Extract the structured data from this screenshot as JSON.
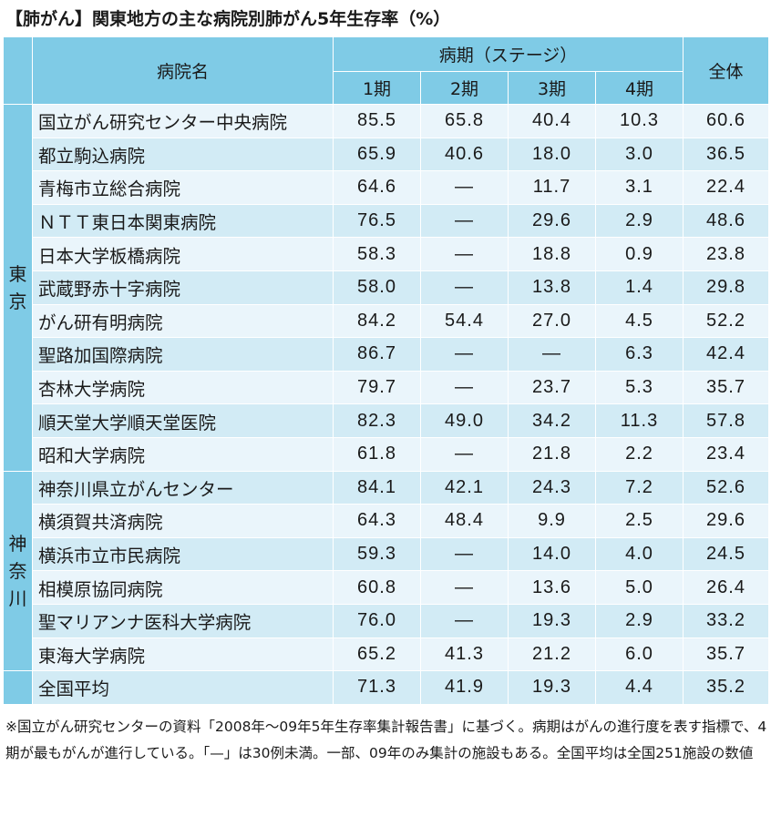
{
  "title": "【肺がん】関東地方の主な病院別肺がん5年生存率（%）",
  "header": {
    "hospital": "病院名",
    "stage_group": "病期（ステージ）",
    "stages": [
      "1期",
      "2期",
      "3期",
      "4期"
    ],
    "overall": "全体"
  },
  "regions": {
    "tokyo": [
      "東",
      "京"
    ],
    "kanagawa": [
      "神",
      "奈",
      "川"
    ]
  },
  "rows": [
    {
      "name": "国立がん研究センター中央病院",
      "s1": "85.5",
      "s2": "65.8",
      "s3": "40.4",
      "s4": "10.3",
      "all": "60.6"
    },
    {
      "name": "都立駒込病院",
      "s1": "65.9",
      "s2": "40.6",
      "s3": "18.0",
      "s4": "3.0",
      "all": "36.5"
    },
    {
      "name": "青梅市立総合病院",
      "s1": "64.6",
      "s2": "—",
      "s3": "11.7",
      "s4": "3.1",
      "all": "22.4"
    },
    {
      "name": "ＮＴＴ東日本関東病院",
      "s1": "76.5",
      "s2": "—",
      "s3": "29.6",
      "s4": "2.9",
      "all": "48.6"
    },
    {
      "name": "日本大学板橋病院",
      "s1": "58.3",
      "s2": "—",
      "s3": "18.8",
      "s4": "0.9",
      "all": "23.8"
    },
    {
      "name": "武蔵野赤十字病院",
      "s1": "58.0",
      "s2": "—",
      "s3": "13.8",
      "s4": "1.4",
      "all": "29.8"
    },
    {
      "name": "がん研有明病院",
      "s1": "84.2",
      "s2": "54.4",
      "s3": "27.0",
      "s4": "4.5",
      "all": "52.2"
    },
    {
      "name": "聖路加国際病院",
      "s1": "86.7",
      "s2": "—",
      "s3": "—",
      "s4": "6.3",
      "all": "42.4"
    },
    {
      "name": "杏林大学病院",
      "s1": "79.7",
      "s2": "—",
      "s3": "23.7",
      "s4": "5.3",
      "all": "35.7"
    },
    {
      "name": "順天堂大学順天堂医院",
      "s1": "82.3",
      "s2": "49.0",
      "s3": "34.2",
      "s4": "11.3",
      "all": "57.8"
    },
    {
      "name": "昭和大学病院",
      "s1": "61.8",
      "s2": "—",
      "s3": "21.8",
      "s4": "2.2",
      "all": "23.4"
    },
    {
      "name": "神奈川県立がんセンター",
      "s1": "84.1",
      "s2": "42.1",
      "s3": "24.3",
      "s4": "7.2",
      "all": "52.6"
    },
    {
      "name": "横須賀共済病院",
      "s1": "64.3",
      "s2": "48.4",
      "s3": "9.9",
      "s4": "2.5",
      "all": "29.6"
    },
    {
      "name": "横浜市立市民病院",
      "s1": "59.3",
      "s2": "—",
      "s3": "14.0",
      "s4": "4.0",
      "all": "24.5"
    },
    {
      "name": "相模原協同病院",
      "s1": "60.8",
      "s2": "—",
      "s3": "13.6",
      "s4": "5.0",
      "all": "26.4"
    },
    {
      "name": "聖マリアンナ医科大学病院",
      "s1": "76.0",
      "s2": "—",
      "s3": "19.3",
      "s4": "2.9",
      "all": "33.2"
    },
    {
      "name": "東海大学病院",
      "s1": "65.2",
      "s2": "41.3",
      "s3": "21.2",
      "s4": "6.0",
      "all": "35.7"
    }
  ],
  "national": {
    "name": "全国平均",
    "s1": "71.3",
    "s2": "41.9",
    "s3": "19.3",
    "s4": "4.4",
    "all": "35.2"
  },
  "note": "※国立がん研究センターの資料「2008年〜09年5年生存率集計報告書」に基づく。病期はがんの進行度を表す指標で、4期が最もがんが進行している。「—」は30例未満。一部、09年のみ集計の施設もある。全国平均は全国251施設の数値"
}
